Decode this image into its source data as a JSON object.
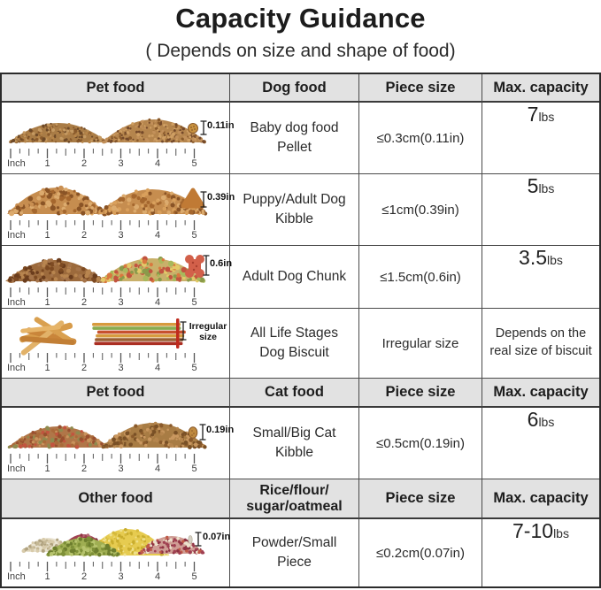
{
  "title": "Capacity Guidance",
  "subtitle": "( Depends on size and shape of food)",
  "colors": {
    "header_bg": "#e2e2e2",
    "table_border": "#2b2b2b",
    "grid_line": "#4a4a4a",
    "text": "#222222",
    "annotation_stick_red": "#bf2a1d"
  },
  "ruler": {
    "unit": "Inch",
    "marks": [
      "1",
      "2",
      "3",
      "4",
      "5"
    ]
  },
  "sections": {
    "dog_header": {
      "col1": "Pet food",
      "col2": "Dog food",
      "col3": "Piece size",
      "col4": "Max. capacity"
    },
    "cat_header": {
      "col1": "Pet food",
      "col2": "Cat food",
      "col3": "Piece size",
      "col4": "Max. capacity"
    },
    "other_header": {
      "col1": "Other food",
      "col2_line1": "Rice/flour/",
      "col2_line2": "sugar/oatmeal",
      "col3": "Piece size",
      "col4": "Max. capacity"
    }
  },
  "rows": {
    "pellet": {
      "food": "Baby dog food Pellet",
      "piece_size": "≤0.3cm(0.11in)",
      "capacity": "7",
      "capacity_unit": "lbs",
      "piece_label": "0.11in"
    },
    "kibble": {
      "food": "Puppy/Adult Dog Kibble",
      "piece_size": "≤1cm(0.39in)",
      "capacity": "5",
      "capacity_unit": "lbs",
      "piece_label": "0.39in"
    },
    "chunk": {
      "food": "Adult Dog Chunk",
      "piece_size": "≤1.5cm(0.6in)",
      "capacity": "3.5",
      "capacity_unit": "lbs",
      "piece_label": "0.6in"
    },
    "biscuit": {
      "food": "All Life Stages Dog Biscuit",
      "piece_size": "Irregular size",
      "capacity_text": "Depends on the real size of biscuit",
      "piece_label": "Irregular size"
    },
    "cat": {
      "food": "Small/Big Cat Kibble",
      "piece_size": "≤0.5cm(0.19in)",
      "capacity": "6",
      "capacity_unit": "lbs",
      "piece_label": "0.19in"
    },
    "powder": {
      "food": "Powder/Small Piece",
      "piece_size": "≤0.2cm(0.07in)",
      "capacity": "7-10",
      "capacity_unit": "lbs",
      "piece_label": "0.07in"
    }
  }
}
